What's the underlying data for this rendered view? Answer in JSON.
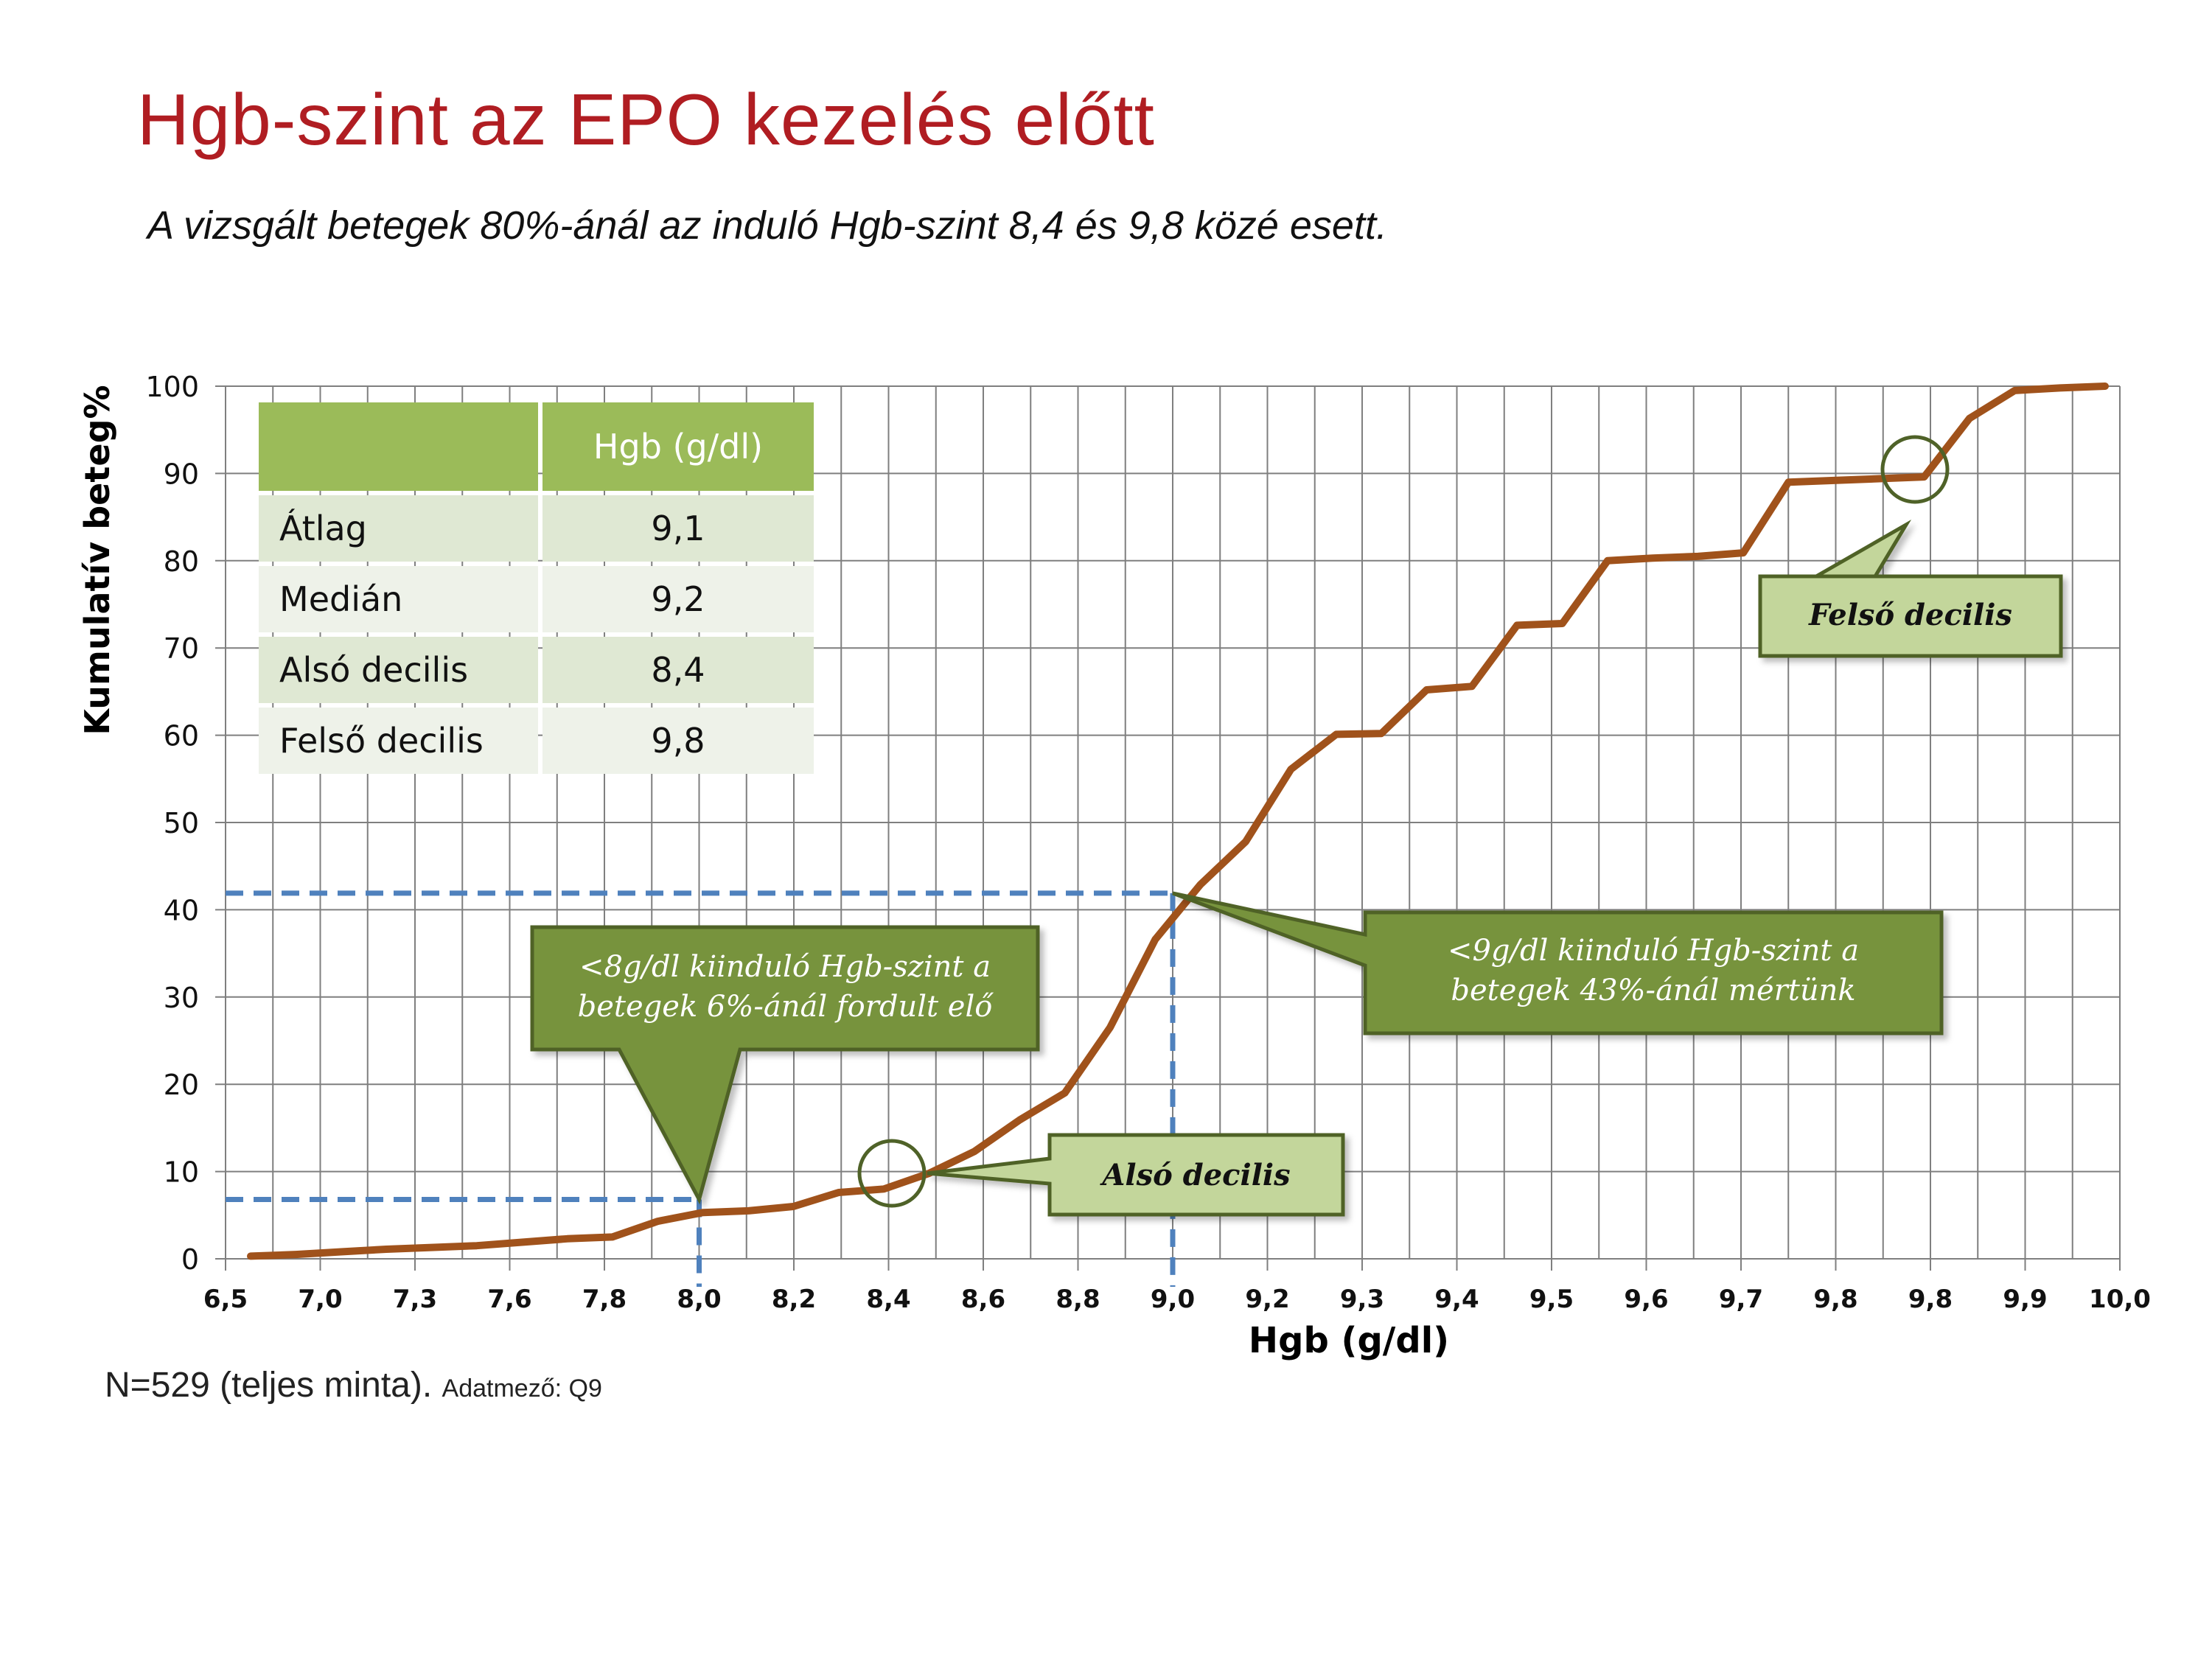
{
  "title": "Hgb-szint az EPO kezelés előtt",
  "subtitle": "A vizsgált betegek 80%-ánál az induló Hgb-szint 8,4 és 9,8 közé esett.",
  "footnote": {
    "main": "N=529 (teljes minta).",
    "small": "Adatmező: Q9"
  },
  "stats_table": {
    "header": "Hgb (g/dl)",
    "rows": [
      {
        "label": "Átlag",
        "value": "9,1"
      },
      {
        "label": "Medián",
        "value": "9,2"
      },
      {
        "label": "Alsó decilis",
        "value": "8,4"
      },
      {
        "label": "Felső decilis",
        "value": "9,8"
      }
    ]
  },
  "callouts": {
    "below8": "<8g/dl kiinduló Hgb-szint a betegek 6%-ánál fordult elő",
    "below9": "<9g/dl kiinduló Hgb-szint a betegek 43%-ánál mértünk",
    "lower_decile": "Alsó decilis",
    "upper_decile": "Felső decilis"
  },
  "colors": {
    "line": "#a0521b",
    "grid": "#7f7f7f",
    "dashed": "#4f81bd",
    "callout_dark": "#77933c",
    "callout_light": "#c3d69b",
    "title": "#b01d22"
  },
  "chart_data": {
    "type": "line",
    "xlabel": "Hgb (g/dl)",
    "ylabel": "Kumulatív beteg%",
    "ylim": [
      0,
      100
    ],
    "yticks": [
      0,
      10,
      20,
      30,
      40,
      50,
      60,
      70,
      80,
      90,
      100
    ],
    "x_tick_labels": [
      "6,5",
      "7,0",
      "7,3",
      "7,6",
      "7,8",
      "8,0",
      "8,2",
      "8,4",
      "8,6",
      "8,8",
      "9,0",
      "9,2",
      "9,3",
      "9,4",
      "9,5",
      "9,6",
      "9,7",
      "9,8",
      "9,8",
      "9,9",
      "10,0"
    ],
    "grid": true,
    "series": [
      {
        "values": [
          0.3,
          0.5,
          0.8,
          1.1,
          1.3,
          1.5,
          1.9,
          2.3,
          2.5,
          4.3,
          5.3,
          5.5,
          6.0,
          7.6,
          8.0,
          9.8,
          12.3,
          15.9,
          19.0,
          26.5,
          36.6,
          42.9,
          47.8,
          56.1,
          60.1,
          60.2,
          65.2,
          65.6,
          72.6,
          72.8,
          80.0,
          80.3,
          80.5,
          80.9,
          89.0,
          89.2,
          89.4,
          89.6,
          96.3,
          99.5,
          99.8,
          100.0
        ]
      }
    ],
    "reference_lines": [
      {
        "x_label": "8,0",
        "y": 6.8
      },
      {
        "x_label": "9,0",
        "y": 41.9
      }
    ]
  }
}
